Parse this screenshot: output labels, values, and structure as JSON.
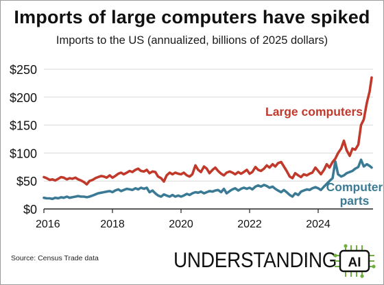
{
  "header": {
    "title": "Imports of large computers have spiked",
    "subtitle": "Imports to the US (annualized, billions of 2025 dollars)"
  },
  "footer": {
    "source": "Source: Census Trade data",
    "brand_text": "UNDERSTANDING",
    "logo_text": "AI"
  },
  "colors": {
    "large_computers": "#c0392b",
    "computer_parts": "#3b7a94",
    "grid": "#d9d9d9",
    "axis": "#222222"
  },
  "chart_data": {
    "type": "line",
    "title": "Imports of large computers have spiked",
    "subtitle": "Imports to the US (annualized, billions of 2025 dollars)",
    "xlabel": "",
    "ylabel": "",
    "xlim": [
      2016.0,
      2025.6
    ],
    "ylim": [
      0,
      250
    ],
    "x_ticks": [
      2016,
      2018,
      2020,
      2022,
      2024
    ],
    "x_tick_labels": [
      "2016",
      "2018",
      "2020",
      "2022",
      "2024"
    ],
    "y_ticks": [
      0,
      50,
      100,
      150,
      200,
      250
    ],
    "y_tick_labels": [
      "$0",
      "$50",
      "$100",
      "$150",
      "$200",
      "$250"
    ],
    "grid": "horizontal",
    "series": [
      {
        "name": "Large computers",
        "label_lines": [
          "Large computers"
        ],
        "color": "#c0392b",
        "points": [
          [
            2016.0,
            57
          ],
          [
            2016.08,
            55
          ],
          [
            2016.17,
            52
          ],
          [
            2016.25,
            53
          ],
          [
            2016.33,
            51
          ],
          [
            2016.42,
            54
          ],
          [
            2016.5,
            57
          ],
          [
            2016.58,
            56
          ],
          [
            2016.67,
            53
          ],
          [
            2016.75,
            55
          ],
          [
            2016.83,
            54
          ],
          [
            2016.92,
            56
          ],
          [
            2017.0,
            53
          ],
          [
            2017.08,
            51
          ],
          [
            2017.17,
            48
          ],
          [
            2017.25,
            44
          ],
          [
            2017.33,
            50
          ],
          [
            2017.42,
            52
          ],
          [
            2017.5,
            55
          ],
          [
            2017.58,
            57
          ],
          [
            2017.67,
            59
          ],
          [
            2017.75,
            58
          ],
          [
            2017.83,
            56
          ],
          [
            2017.92,
            60
          ],
          [
            2018.0,
            56
          ],
          [
            2018.08,
            59
          ],
          [
            2018.17,
            63
          ],
          [
            2018.25,
            65
          ],
          [
            2018.33,
            62
          ],
          [
            2018.42,
            65
          ],
          [
            2018.5,
            68
          ],
          [
            2018.58,
            66
          ],
          [
            2018.67,
            70
          ],
          [
            2018.75,
            72
          ],
          [
            2018.83,
            68
          ],
          [
            2018.92,
            67
          ],
          [
            2019.0,
            70
          ],
          [
            2019.08,
            64
          ],
          [
            2019.17,
            67
          ],
          [
            2019.25,
            66
          ],
          [
            2019.33,
            58
          ],
          [
            2019.42,
            55
          ],
          [
            2019.5,
            49
          ],
          [
            2019.58,
            60
          ],
          [
            2019.67,
            65
          ],
          [
            2019.75,
            62
          ],
          [
            2019.83,
            65
          ],
          [
            2019.92,
            63
          ],
          [
            2020.0,
            62
          ],
          [
            2020.08,
            65
          ],
          [
            2020.17,
            60
          ],
          [
            2020.25,
            58
          ],
          [
            2020.33,
            62
          ],
          [
            2020.42,
            78
          ],
          [
            2020.5,
            70
          ],
          [
            2020.58,
            66
          ],
          [
            2020.67,
            76
          ],
          [
            2020.75,
            72
          ],
          [
            2020.83,
            64
          ],
          [
            2020.92,
            70
          ],
          [
            2021.0,
            74
          ],
          [
            2021.08,
            68
          ],
          [
            2021.17,
            63
          ],
          [
            2021.25,
            60
          ],
          [
            2021.33,
            65
          ],
          [
            2021.42,
            67
          ],
          [
            2021.5,
            65
          ],
          [
            2021.58,
            62
          ],
          [
            2021.67,
            66
          ],
          [
            2021.75,
            63
          ],
          [
            2021.83,
            66
          ],
          [
            2021.92,
            70
          ],
          [
            2022.0,
            63
          ],
          [
            2022.08,
            66
          ],
          [
            2022.17,
            75
          ],
          [
            2022.25,
            70
          ],
          [
            2022.33,
            68
          ],
          [
            2022.42,
            72
          ],
          [
            2022.5,
            78
          ],
          [
            2022.58,
            74
          ],
          [
            2022.67,
            80
          ],
          [
            2022.75,
            76
          ],
          [
            2022.83,
            82
          ],
          [
            2022.92,
            84
          ],
          [
            2023.0,
            76
          ],
          [
            2023.08,
            68
          ],
          [
            2023.17,
            58
          ],
          [
            2023.25,
            55
          ],
          [
            2023.33,
            64
          ],
          [
            2023.42,
            60
          ],
          [
            2023.5,
            57
          ],
          [
            2023.58,
            62
          ],
          [
            2023.67,
            60
          ],
          [
            2023.75,
            63
          ],
          [
            2023.83,
            65
          ],
          [
            2023.92,
            74
          ],
          [
            2024.0,
            68
          ],
          [
            2024.08,
            62
          ],
          [
            2024.17,
            70
          ],
          [
            2024.25,
            80
          ],
          [
            2024.33,
            74
          ],
          [
            2024.42,
            84
          ],
          [
            2024.5,
            90
          ],
          [
            2024.58,
            100
          ],
          [
            2024.67,
            108
          ],
          [
            2024.75,
            122
          ],
          [
            2024.83,
            105
          ],
          [
            2024.92,
            95
          ],
          [
            2025.0,
            108
          ],
          [
            2025.08,
            106
          ],
          [
            2025.17,
            115
          ],
          [
            2025.25,
            150
          ],
          [
            2025.33,
            160
          ],
          [
            2025.42,
            190
          ],
          [
            2025.5,
            210
          ],
          [
            2025.56,
            235
          ]
        ]
      },
      {
        "name": "Computer parts",
        "label_lines": [
          "Computer",
          "parts"
        ],
        "color": "#3b7a94",
        "points": [
          [
            2016.0,
            20
          ],
          [
            2016.08,
            19
          ],
          [
            2016.17,
            19
          ],
          [
            2016.25,
            18
          ],
          [
            2016.33,
            20
          ],
          [
            2016.42,
            19
          ],
          [
            2016.5,
            21
          ],
          [
            2016.58,
            20
          ],
          [
            2016.67,
            22
          ],
          [
            2016.75,
            20
          ],
          [
            2016.83,
            21
          ],
          [
            2016.92,
            22
          ],
          [
            2017.0,
            23
          ],
          [
            2017.08,
            22
          ],
          [
            2017.17,
            22
          ],
          [
            2017.25,
            21
          ],
          [
            2017.33,
            22
          ],
          [
            2017.42,
            24
          ],
          [
            2017.5,
            26
          ],
          [
            2017.58,
            28
          ],
          [
            2017.67,
            29
          ],
          [
            2017.75,
            30
          ],
          [
            2017.83,
            31
          ],
          [
            2017.92,
            32
          ],
          [
            2018.0,
            30
          ],
          [
            2018.08,
            33
          ],
          [
            2018.17,
            35
          ],
          [
            2018.25,
            32
          ],
          [
            2018.33,
            34
          ],
          [
            2018.42,
            36
          ],
          [
            2018.5,
            35
          ],
          [
            2018.58,
            34
          ],
          [
            2018.67,
            37
          ],
          [
            2018.75,
            35
          ],
          [
            2018.83,
            38
          ],
          [
            2018.92,
            36
          ],
          [
            2019.0,
            38
          ],
          [
            2019.08,
            30
          ],
          [
            2019.17,
            33
          ],
          [
            2019.25,
            28
          ],
          [
            2019.33,
            24
          ],
          [
            2019.42,
            22
          ],
          [
            2019.5,
            26
          ],
          [
            2019.58,
            24
          ],
          [
            2019.67,
            22
          ],
          [
            2019.75,
            25
          ],
          [
            2019.83,
            22
          ],
          [
            2019.92,
            24
          ],
          [
            2020.0,
            22
          ],
          [
            2020.08,
            24
          ],
          [
            2020.17,
            27
          ],
          [
            2020.25,
            25
          ],
          [
            2020.33,
            28
          ],
          [
            2020.42,
            30
          ],
          [
            2020.5,
            29
          ],
          [
            2020.58,
            31
          ],
          [
            2020.67,
            28
          ],
          [
            2020.75,
            30
          ],
          [
            2020.83,
            32
          ],
          [
            2020.92,
            31
          ],
          [
            2021.0,
            33
          ],
          [
            2021.08,
            34
          ],
          [
            2021.17,
            30
          ],
          [
            2021.25,
            36
          ],
          [
            2021.33,
            28
          ],
          [
            2021.42,
            32
          ],
          [
            2021.5,
            35
          ],
          [
            2021.58,
            37
          ],
          [
            2021.67,
            33
          ],
          [
            2021.75,
            36
          ],
          [
            2021.83,
            38
          ],
          [
            2021.92,
            36
          ],
          [
            2022.0,
            38
          ],
          [
            2022.08,
            35
          ],
          [
            2022.17,
            40
          ],
          [
            2022.25,
            42
          ],
          [
            2022.33,
            40
          ],
          [
            2022.42,
            43
          ],
          [
            2022.5,
            41
          ],
          [
            2022.58,
            38
          ],
          [
            2022.67,
            40
          ],
          [
            2022.75,
            36
          ],
          [
            2022.83,
            33
          ],
          [
            2022.92,
            30
          ],
          [
            2023.0,
            34
          ],
          [
            2023.08,
            30
          ],
          [
            2023.17,
            25
          ],
          [
            2023.25,
            22
          ],
          [
            2023.33,
            28
          ],
          [
            2023.42,
            25
          ],
          [
            2023.5,
            31
          ],
          [
            2023.58,
            33
          ],
          [
            2023.67,
            35
          ],
          [
            2023.75,
            34
          ],
          [
            2023.83,
            37
          ],
          [
            2023.92,
            39
          ],
          [
            2024.0,
            37
          ],
          [
            2024.08,
            34
          ],
          [
            2024.17,
            40
          ],
          [
            2024.25,
            45
          ],
          [
            2024.33,
            50
          ],
          [
            2024.42,
            55
          ],
          [
            2024.5,
            85
          ],
          [
            2024.58,
            62
          ],
          [
            2024.67,
            58
          ],
          [
            2024.75,
            60
          ],
          [
            2024.83,
            64
          ],
          [
            2024.92,
            66
          ],
          [
            2025.0,
            68
          ],
          [
            2025.08,
            72
          ],
          [
            2025.17,
            75
          ],
          [
            2025.25,
            88
          ],
          [
            2025.33,
            76
          ],
          [
            2025.42,
            80
          ],
          [
            2025.5,
            77
          ],
          [
            2025.56,
            74
          ]
        ]
      }
    ]
  }
}
